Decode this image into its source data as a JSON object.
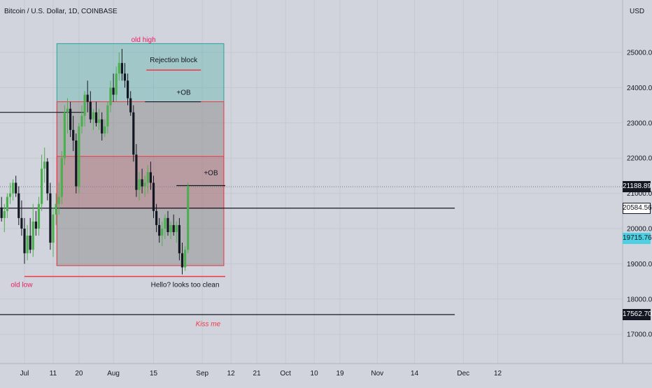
{
  "header": {
    "title": "Bitcoin / U.S. Dollar, 1D, COINBASE",
    "currency": "USD"
  },
  "chart_data": {
    "type": "candlestick",
    "title": "",
    "ylim": [
      16500,
      25800
    ],
    "y_ticks": [
      "17000.00",
      "18000.00",
      "19000.00",
      "20000.00",
      "21000.00",
      "22000.00",
      "23000.00",
      "24000.00",
      "25000.00"
    ],
    "x_ticks": [
      "Jul",
      "11",
      "20",
      "Aug",
      "15",
      "Sep",
      "12",
      "21",
      "Oct",
      "10",
      "19",
      "Nov",
      "14",
      "Dec",
      "12"
    ],
    "x_ticks_days": [
      0,
      10,
      19,
      31,
      45,
      62,
      72,
      81,
      91,
      101,
      110,
      123,
      136,
      153,
      165
    ],
    "price_tags": [
      {
        "label": "21188.89",
        "value": 21189,
        "style": "dark"
      },
      {
        "label": "20584.56",
        "value": 20585,
        "style": "light"
      },
      {
        "label": "19715.76",
        "value": 19716,
        "style": "cyan"
      },
      {
        "label": "17562.70",
        "value": 17563,
        "style": "dark"
      }
    ],
    "zones": [
      {
        "kind": "teal",
        "from_day": 11.3,
        "to_day": 69.5,
        "low": 18950,
        "high": 25250
      },
      {
        "kind": "red",
        "from_day": 11.3,
        "to_day": 69.5,
        "low": 18950,
        "high": 23600
      },
      {
        "kind": "red",
        "from_day": 11.3,
        "to_day": 69.5,
        "low": 20580,
        "high": 22050
      }
    ],
    "lines": [
      {
        "kind": "black",
        "from_day": -14,
        "to_day": 21,
        "value": 23300
      },
      {
        "kind": "black",
        "from_day": -14,
        "to_day": 150,
        "value": 20580
      },
      {
        "kind": "black",
        "from_day": -14,
        "to_day": 150,
        "value": 17560
      },
      {
        "kind": "red",
        "from_day": 42.5,
        "to_day": 61.5,
        "value": 24500
      },
      {
        "kind": "black",
        "from_day": 42,
        "to_day": 61.5,
        "value": 23600
      },
      {
        "kind": "black",
        "from_day": 53,
        "to_day": 70,
        "value": 21220
      },
      {
        "kind": "red",
        "from_day": 0,
        "to_day": 70,
        "value": 18640
      }
    ],
    "annotations": [
      {
        "text": "old high",
        "day": 41.5,
        "value": 25300,
        "color": "#e91e63"
      },
      {
        "text": "Rejection block",
        "day": 52,
        "value": 24720,
        "color": "#131722"
      },
      {
        "text": "+OB",
        "day": 55.5,
        "value": 23800,
        "color": "#131722"
      },
      {
        "text": "+OB",
        "day": 65,
        "value": 21520,
        "color": "#131722"
      },
      {
        "text": "old low",
        "day": -1,
        "value": 18340,
        "color": "#e91e63"
      },
      {
        "text": "Hello? looks too clean",
        "day": 56,
        "value": 18340,
        "color": "#131722"
      },
      {
        "text": "Kiss me",
        "day": 64,
        "value": 17230,
        "color": "#f23645"
      }
    ],
    "candles": [
      [
        -12,
        21000,
        21400,
        20700,
        21200
      ],
      [
        -11,
        21200,
        21500,
        20900,
        21100
      ],
      [
        -10,
        21100,
        21200,
        20600,
        20800
      ],
      [
        -9,
        20800,
        21000,
        20400,
        20600
      ],
      [
        -8,
        20600,
        20900,
        20200,
        20300
      ],
      [
        -7,
        20300,
        20700,
        19900,
        20500
      ],
      [
        -6,
        20500,
        21000,
        20300,
        20900
      ],
      [
        -5,
        20900,
        21300,
        20700,
        21000
      ],
      [
        -4,
        21000,
        21400,
        20800,
        21300
      ],
      [
        -3,
        21300,
        21500,
        20900,
        21000
      ],
      [
        -2,
        21000,
        21200,
        20100,
        20300
      ],
      [
        -1,
        20300,
        20800,
        19800,
        20000
      ],
      [
        0,
        20000,
        20300,
        19000,
        19300
      ],
      [
        1,
        19300,
        20100,
        19100,
        19800
      ],
      [
        2,
        19800,
        20300,
        19300,
        19400
      ],
      [
        3,
        19400,
        20700,
        19200,
        20200
      ],
      [
        4,
        20200,
        20500,
        19800,
        20000
      ],
      [
        5,
        20000,
        20900,
        19800,
        20700
      ],
      [
        6,
        20700,
        22100,
        20500,
        21700
      ],
      [
        7,
        21700,
        22300,
        21300,
        21900
      ],
      [
        8,
        21900,
        22000,
        20800,
        21000
      ],
      [
        9,
        21000,
        21300,
        19400,
        19600
      ],
      [
        10,
        19600,
        20600,
        19200,
        20400
      ],
      [
        11,
        20400,
        21000,
        20100,
        20700
      ],
      [
        12,
        20700,
        21300,
        20400,
        20900
      ],
      [
        13,
        20900,
        22200,
        20700,
        22000
      ],
      [
        14,
        22000,
        23500,
        21800,
        23300
      ],
      [
        15,
        23300,
        23700,
        22700,
        23400
      ],
      [
        16,
        23400,
        23600,
        22600,
        22800
      ],
      [
        17,
        22800,
        23200,
        22200,
        22500
      ],
      [
        18,
        22500,
        22700,
        21000,
        21200
      ],
      [
        19,
        21200,
        23000,
        21000,
        22900
      ],
      [
        20,
        22900,
        23500,
        22700,
        23200
      ],
      [
        21,
        23200,
        23900,
        22900,
        23800
      ],
      [
        22,
        23800,
        24200,
        23300,
        23600
      ],
      [
        23,
        23600,
        23900,
        23000,
        23100
      ],
      [
        24,
        23100,
        23400,
        22800,
        23300
      ],
      [
        25,
        23300,
        23600,
        22900,
        23000
      ],
      [
        26,
        23000,
        23400,
        22800,
        23100
      ],
      [
        27,
        23100,
        23300,
        22500,
        22700
      ],
      [
        28,
        22700,
        23100,
        22600,
        22900
      ],
      [
        29,
        22900,
        23600,
        22700,
        23500
      ],
      [
        30,
        23500,
        24200,
        23300,
        24000
      ],
      [
        31,
        24000,
        24400,
        23600,
        23800
      ],
      [
        32,
        23800,
        24600,
        23600,
        24400
      ],
      [
        33,
        24400,
        25000,
        24200,
        24700
      ],
      [
        34,
        24700,
        25100,
        24200,
        24400
      ],
      [
        35,
        24400,
        24700,
        24000,
        24200
      ],
      [
        36,
        24200,
        24400,
        23500,
        23700
      ],
      [
        37,
        23700,
        23900,
        23200,
        23300
      ],
      [
        38,
        23300,
        23500,
        21900,
        22100
      ],
      [
        39,
        22100,
        22400,
        20900,
        21100
      ],
      [
        40,
        21100,
        21600,
        20800,
        21400
      ],
      [
        41,
        21400,
        21700,
        21000,
        21200
      ],
      [
        42,
        21200,
        21500,
        20900,
        21300
      ],
      [
        43,
        21300,
        21800,
        21000,
        21600
      ],
      [
        44,
        21600,
        21900,
        21100,
        21300
      ],
      [
        45,
        21300,
        21500,
        20300,
        20500
      ],
      [
        46,
        20500,
        20700,
        19900,
        20100
      ],
      [
        47,
        20100,
        20300,
        19600,
        19800
      ],
      [
        48,
        19800,
        20200,
        19500,
        20000
      ],
      [
        49,
        20000,
        20400,
        19700,
        20300
      ],
      [
        50,
        20300,
        20500,
        19800,
        19900
      ],
      [
        51,
        19900,
        20200,
        19700,
        20100
      ],
      [
        52,
        20100,
        20400,
        19800,
        19900
      ],
      [
        53,
        19900,
        20200,
        19600,
        20100
      ],
      [
        54,
        20100,
        20300,
        19100,
        19300
      ],
      [
        55,
        19300,
        19600,
        18700,
        18900
      ],
      [
        56,
        18900,
        19500,
        18800,
        19400
      ],
      [
        57,
        19400,
        21300,
        19300,
        21190
      ]
    ]
  }
}
